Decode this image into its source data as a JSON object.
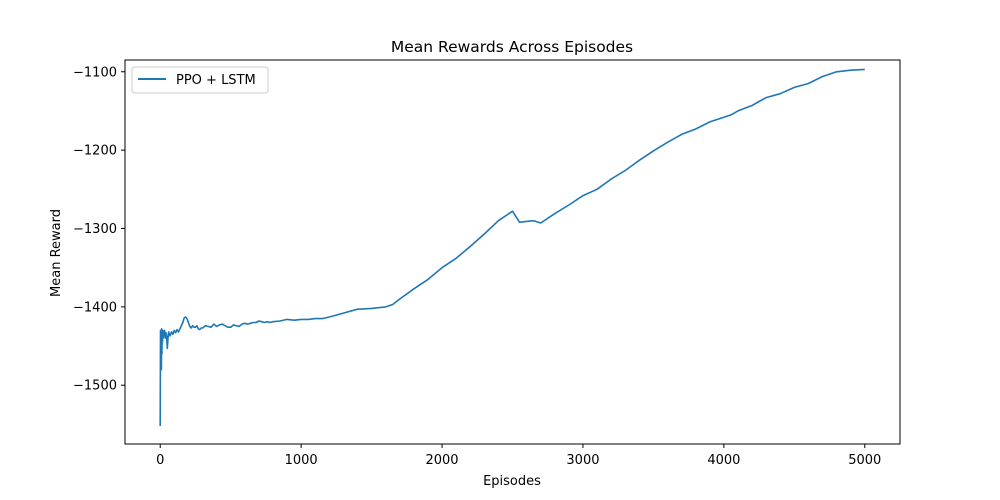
{
  "chart_data": {
    "type": "line",
    "title": "Mean Rewards Across Episodes",
    "xlabel": "Episodes",
    "ylabel": "Mean Reward",
    "xlim": [
      -250,
      5250
    ],
    "ylim": [
      -1575,
      -1085
    ],
    "xticks": [
      0,
      1000,
      2000,
      3000,
      4000,
      5000
    ],
    "xtick_labels": [
      "0",
      "1000",
      "2000",
      "3000",
      "4000",
      "5000"
    ],
    "yticks": [
      -1500,
      -1400,
      -1300,
      -1200,
      -1100
    ],
    "ytick_labels": [
      "−1500",
      "−1400",
      "−1300",
      "−1200",
      "−1100"
    ],
    "grid": false,
    "legend_position": "upper-left",
    "color": "#1f77b4",
    "series": [
      {
        "name": "PPO + LSTM",
        "x": [
          0,
          2,
          4,
          6,
          8,
          10,
          12,
          14,
          16,
          18,
          20,
          25,
          30,
          35,
          40,
          45,
          50,
          55,
          60,
          65,
          70,
          80,
          90,
          100,
          110,
          120,
          130,
          140,
          150,
          160,
          170,
          180,
          190,
          200,
          210,
          220,
          230,
          240,
          250,
          260,
          270,
          280,
          290,
          300,
          320,
          340,
          360,
          380,
          400,
          420,
          440,
          460,
          480,
          500,
          520,
          540,
          560,
          580,
          600,
          620,
          640,
          660,
          680,
          700,
          720,
          740,
          760,
          780,
          800,
          850,
          900,
          950,
          1000,
          1050,
          1100,
          1150,
          1200,
          1300,
          1400,
          1500,
          1600,
          1650,
          1700,
          1800,
          1900,
          2000,
          2100,
          2200,
          2300,
          2400,
          2500,
          2550,
          2600,
          2650,
          2700,
          2800,
          2900,
          3000,
          3100,
          3200,
          3300,
          3400,
          3500,
          3600,
          3700,
          3800,
          3900,
          4000,
          4050,
          4100,
          4200,
          4300,
          4400,
          4500,
          4600,
          4700,
          4800,
          4900,
          5000
        ],
        "values": [
          -1552,
          -1430,
          -1470,
          -1435,
          -1480,
          -1428,
          -1460,
          -1432,
          -1445,
          -1430,
          -1440,
          -1435,
          -1430,
          -1440,
          -1433,
          -1437,
          -1453,
          -1440,
          -1432,
          -1436,
          -1437,
          -1432,
          -1435,
          -1430,
          -1433,
          -1429,
          -1432,
          -1428,
          -1424,
          -1420,
          -1414,
          -1413,
          -1415,
          -1420,
          -1425,
          -1427,
          -1424,
          -1426,
          -1426,
          -1424,
          -1428,
          -1429,
          -1427,
          -1427,
          -1424,
          -1425,
          -1426,
          -1422,
          -1425,
          -1423,
          -1422,
          -1424,
          -1426,
          -1426,
          -1423,
          -1424,
          -1425,
          -1422,
          -1421,
          -1422,
          -1421,
          -1420,
          -1420,
          -1418,
          -1419,
          -1420,
          -1419,
          -1420,
          -1419,
          -1418,
          -1416,
          -1417,
          -1416,
          -1416,
          -1415,
          -1415,
          -1413,
          -1408,
          -1403,
          -1402,
          -1400,
          -1397,
          -1390,
          -1377,
          -1365,
          -1350,
          -1338,
          -1323,
          -1307,
          -1290,
          -1278,
          -1292,
          -1291,
          -1290,
          -1293,
          -1281,
          -1270,
          -1258,
          -1250,
          -1237,
          -1226,
          -1213,
          -1201,
          -1190,
          -1180,
          -1173,
          -1164,
          -1158,
          -1155,
          -1150,
          -1143,
          -1133,
          -1128,
          -1120,
          -1115,
          -1106,
          -1100,
          -1098,
          -1097
        ]
      }
    ]
  }
}
